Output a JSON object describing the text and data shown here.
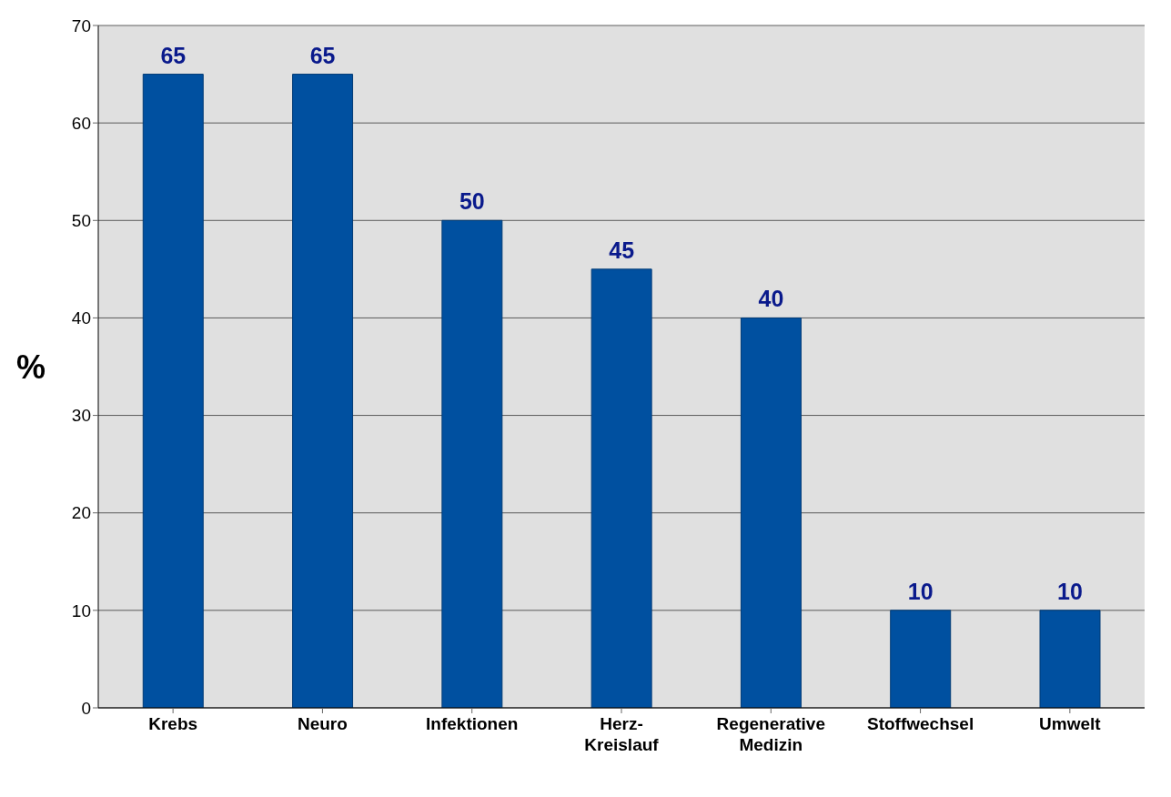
{
  "chart_data": {
    "type": "bar",
    "ylabel": "%",
    "categories": [
      "Krebs",
      "Neuro",
      "Infektionen",
      "Herz-\nKreislauf",
      "Regenerative\nMedizin",
      "Stoffwechsel",
      "Umwelt"
    ],
    "values": [
      65,
      65,
      50,
      45,
      40,
      10,
      10
    ],
    "color": "#0050a0",
    "ylim": [
      0,
      70
    ],
    "yticks": [
      0,
      10,
      20,
      30,
      40,
      50,
      60,
      70
    ],
    "grid": "y",
    "data_labels": true
  }
}
